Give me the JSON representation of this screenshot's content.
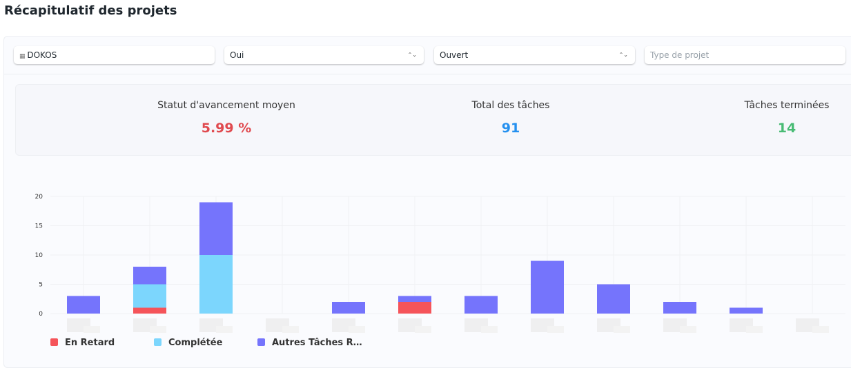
{
  "header": {
    "title": "Récapitulatif des projets"
  },
  "filters": [
    {
      "value": "DOKOS"
    },
    {
      "value": "Oui"
    },
    {
      "value": "Ouvert"
    },
    {
      "placeholder": "Type de projet"
    }
  ],
  "stats": [
    {
      "label": "Statut d'avancement moyen",
      "value": "5.99 %",
      "color": "#e04a4f"
    },
    {
      "label": "Total des tâches",
      "value": "91",
      "color": "#2490ef"
    },
    {
      "label": "Tâches terminées",
      "value": "14",
      "color": "#48bb74"
    }
  ],
  "chart_data": {
    "type": "stacked_bar",
    "categories": [
      null,
      null,
      null,
      null,
      null,
      null,
      null,
      null,
      null,
      null,
      null,
      null
    ],
    "series": [
      {
        "name": "En Retard",
        "color": "#f5545a",
        "values": [
          0,
          1,
          0,
          0,
          0,
          2,
          0,
          0,
          0,
          0,
          0,
          0
        ]
      },
      {
        "name": "Complétée",
        "color": "#7cd6fd",
        "values": [
          0,
          4,
          10,
          0,
          0,
          0,
          0,
          0,
          0,
          0,
          0,
          0
        ]
      },
      {
        "name": "Autres Tâches R…",
        "color": "#7574fc",
        "values": [
          3,
          3,
          9,
          0,
          2,
          1,
          3,
          9,
          5,
          2,
          1,
          0
        ]
      }
    ],
    "ylim": [
      0,
      20
    ],
    "yticks": [
      0,
      5,
      10,
      15,
      20
    ],
    "grid": true
  }
}
